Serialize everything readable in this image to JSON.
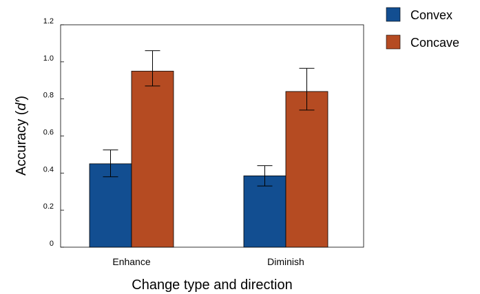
{
  "chart_data": {
    "type": "bar",
    "title": "",
    "xlabel": "Change type and direction",
    "ylabel_prefix": "Accuracy (",
    "ylabel_italic": "d′",
    "ylabel_suffix": ")",
    "ylim": [
      0,
      1.2
    ],
    "yticks": [
      "0",
      "0.2",
      "0.4",
      "0.6",
      "0.8",
      "1.0",
      "1.2"
    ],
    "categories": [
      "Enhance",
      "Diminish"
    ],
    "series": [
      {
        "name": "Convex",
        "color": "#124e91",
        "values": [
          0.45,
          0.385
        ],
        "error": [
          [
            0.38,
            0.525
          ],
          [
            0.33,
            0.44
          ]
        ]
      },
      {
        "name": "Concave",
        "color": "#b54b22",
        "values": [
          0.95,
          0.84
        ],
        "error": [
          [
            0.87,
            1.06
          ],
          [
            0.74,
            0.965
          ]
        ]
      }
    ],
    "legend_position": "top-right",
    "grid": false
  }
}
